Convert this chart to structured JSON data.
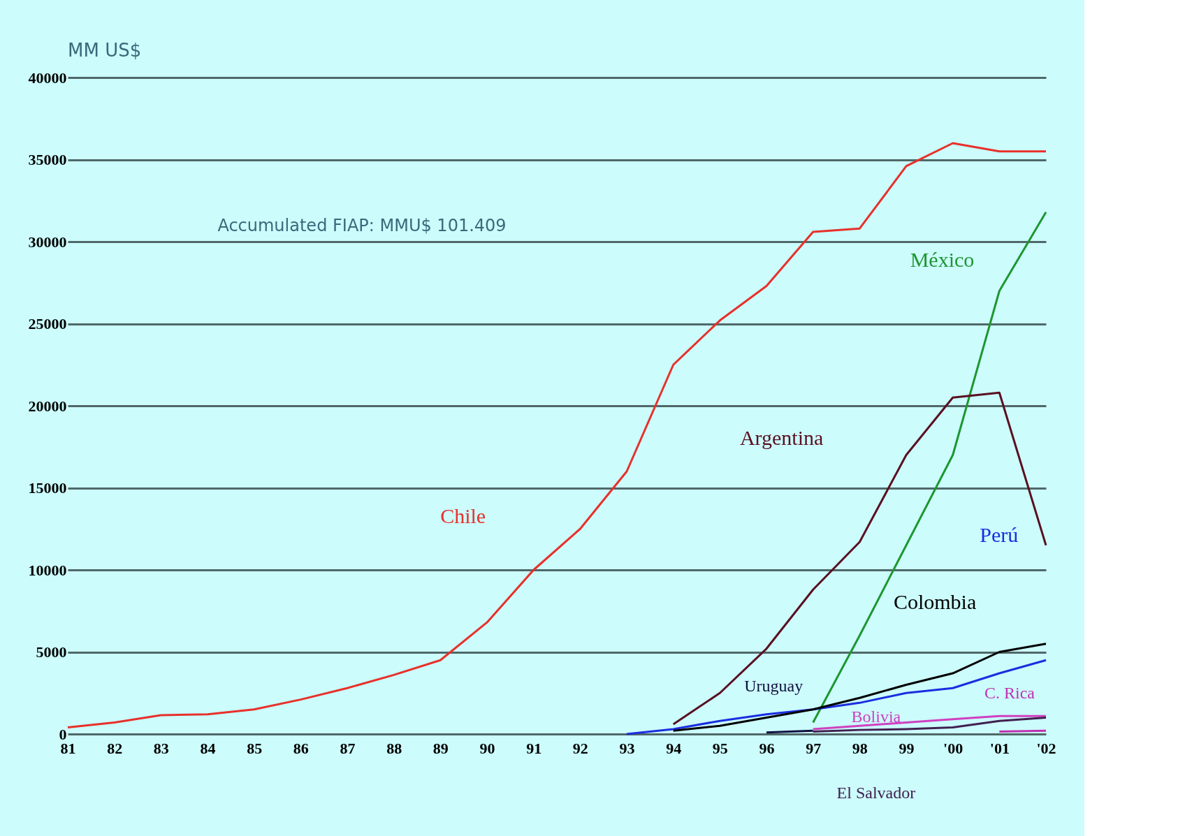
{
  "chart_data": {
    "type": "line",
    "ylabel": "MM US$",
    "annotations": [
      "Accumulated FIAP: MMU$ 101.409"
    ],
    "categories": [
      "81",
      "82",
      "83",
      "84",
      "85",
      "86",
      "87",
      "88",
      "89",
      "90",
      "91",
      "92",
      "93",
      "94",
      "95",
      "96",
      "97",
      "98",
      "99",
      "'00",
      "'01",
      "'02"
    ],
    "series": [
      {
        "name": "Chile",
        "color": "#e8302a",
        "values": [
          400,
          700,
          1150,
          1200,
          1500,
          2100,
          2800,
          3600,
          4500,
          6800,
          10000,
          12500,
          16000,
          22500,
          25200,
          27300,
          30600,
          30800,
          34600,
          36000,
          35500,
          35500
        ]
      },
      {
        "name": "México",
        "color": "#1e9630",
        "values": [
          null,
          null,
          null,
          null,
          null,
          null,
          null,
          null,
          null,
          null,
          null,
          null,
          null,
          null,
          null,
          null,
          700,
          6000,
          11500,
          17000,
          27000,
          31800
        ]
      },
      {
        "name": "Argentina",
        "color": "#5a1020",
        "values": [
          null,
          null,
          null,
          null,
          null,
          null,
          null,
          null,
          null,
          null,
          null,
          null,
          null,
          600,
          2500,
          5200,
          8800,
          11700,
          17000,
          20500,
          20800,
          11500
        ]
      },
      {
        "name": "Perú",
        "color": "#1a2ee0",
        "values": [
          null,
          null,
          null,
          null,
          null,
          null,
          null,
          null,
          null,
          null,
          null,
          null,
          0,
          300,
          800,
          1200,
          1500,
          1900,
          2500,
          2800,
          3700,
          4500
        ]
      },
      {
        "name": "Colombia",
        "color": "#000000",
        "values": [
          null,
          null,
          null,
          null,
          null,
          null,
          null,
          null,
          null,
          null,
          null,
          null,
          null,
          200,
          500,
          1000,
          1500,
          2200,
          3000,
          3700,
          5000,
          5500
        ]
      },
      {
        "name": "Uruguay",
        "color": "#101040",
        "values": [
          null,
          null,
          null,
          null,
          null,
          null,
          null,
          null,
          null,
          null,
          null,
          null,
          null,
          null,
          null,
          100,
          200,
          null,
          null,
          null,
          null,
          null
        ]
      },
      {
        "name": "Bolivia",
        "color": "#d040c0",
        "values": [
          null,
          null,
          null,
          null,
          null,
          null,
          null,
          null,
          null,
          null,
          null,
          null,
          null,
          null,
          null,
          null,
          300,
          500,
          700,
          900,
          1100,
          1100
        ]
      },
      {
        "name": "C. Rica",
        "color": "#c030b0",
        "values": [
          null,
          null,
          null,
          null,
          null,
          null,
          null,
          null,
          null,
          null,
          null,
          null,
          null,
          null,
          null,
          null,
          null,
          null,
          null,
          null,
          150,
          200
        ]
      },
      {
        "name": "El Salvador",
        "color": "#402050",
        "values": [
          null,
          null,
          null,
          null,
          null,
          null,
          null,
          null,
          null,
          null,
          null,
          null,
          null,
          null,
          null,
          null,
          150,
          250,
          300,
          400,
          800,
          1000
        ]
      }
    ],
    "ylim": [
      0,
      40000
    ],
    "yticks": [
      0,
      5000,
      10000,
      15000,
      20000,
      25000,
      30000,
      35000,
      40000
    ],
    "grid": "y",
    "line_style": "solid",
    "marker": "none"
  }
}
